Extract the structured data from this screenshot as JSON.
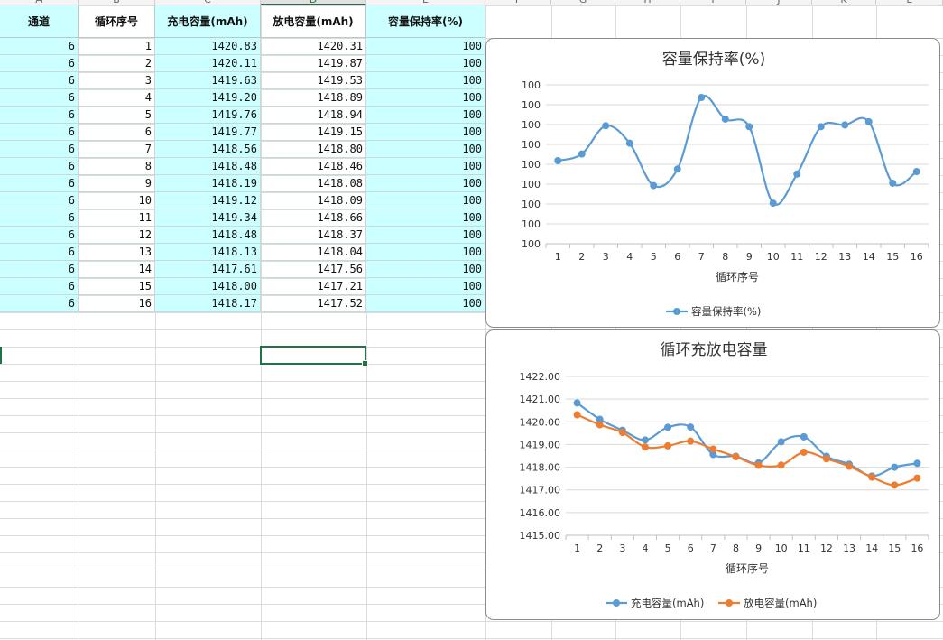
{
  "sheet": {
    "column_letters": [
      "A",
      "B",
      "C",
      "D",
      "E",
      "F",
      "G",
      "H",
      "I",
      "J",
      "K",
      "L"
    ],
    "selected_column": "D",
    "headers": [
      "通道",
      "循环序号",
      "充电容量(mAh)",
      "放电容量(mAh)",
      "容量保持率(%)"
    ],
    "rows": [
      [
        "6",
        "1",
        "1420.83",
        "1420.31",
        "100"
      ],
      [
        "6",
        "2",
        "1420.11",
        "1419.87",
        "100"
      ],
      [
        "6",
        "3",
        "1419.63",
        "1419.53",
        "100"
      ],
      [
        "6",
        "4",
        "1419.20",
        "1418.89",
        "100"
      ],
      [
        "6",
        "5",
        "1419.76",
        "1418.94",
        "100"
      ],
      [
        "6",
        "6",
        "1419.77",
        "1419.15",
        "100"
      ],
      [
        "6",
        "7",
        "1418.56",
        "1418.80",
        "100"
      ],
      [
        "6",
        "8",
        "1418.48",
        "1418.46",
        "100"
      ],
      [
        "6",
        "9",
        "1418.19",
        "1418.08",
        "100"
      ],
      [
        "6",
        "10",
        "1419.12",
        "1418.09",
        "100"
      ],
      [
        "6",
        "11",
        "1419.34",
        "1418.66",
        "100"
      ],
      [
        "6",
        "12",
        "1418.48",
        "1418.37",
        "100"
      ],
      [
        "6",
        "13",
        "1418.13",
        "1418.04",
        "100"
      ],
      [
        "6",
        "14",
        "1417.61",
        "1417.56",
        "100"
      ],
      [
        "6",
        "15",
        "1418.00",
        "1417.21",
        "100"
      ],
      [
        "6",
        "16",
        "1418.17",
        "1417.52",
        "100"
      ]
    ],
    "fill_color": "#ccffff",
    "selection_color": "#217346"
  },
  "chart_data": [
    {
      "type": "line",
      "title": "容量保持率(%)",
      "xlabel": "循环序号",
      "ylabel": "",
      "categories": [
        "1",
        "2",
        "3",
        "4",
        "5",
        "6",
        "7",
        "8",
        "9",
        "10",
        "11",
        "12",
        "13",
        "14",
        "15",
        "16"
      ],
      "y_tick_labels": [
        "100",
        "100",
        "100",
        "100",
        "100",
        "100",
        "100",
        "100",
        "100"
      ],
      "series": [
        {
          "name": "容量保持率(%)",
          "color": "#5b9bd5",
          "values": [
            99.9634,
            99.969,
            99.993,
            99.9782,
            99.9423,
            99.9563,
            100.0169,
            99.9986,
            99.9922,
            99.9274,
            99.9521,
            99.9922,
            99.9937,
            99.9964,
            99.9443,
            99.9542
          ]
        }
      ],
      "legend": "bottom",
      "grid": true
    },
    {
      "type": "line",
      "title": "循环充放电容量",
      "xlabel": "循环序号",
      "ylabel": "",
      "categories": [
        "1",
        "2",
        "3",
        "4",
        "5",
        "6",
        "7",
        "8",
        "9",
        "10",
        "11",
        "12",
        "13",
        "14",
        "15",
        "16"
      ],
      "y_tick_labels": [
        "1422.00",
        "1421.00",
        "1420.00",
        "1419.00",
        "1418.00",
        "1417.00",
        "1416.00",
        "1415.00"
      ],
      "ylim": [
        1415,
        1422
      ],
      "series": [
        {
          "name": "充电容量(mAh)",
          "color": "#5b9bd5",
          "values": [
            1420.83,
            1420.11,
            1419.63,
            1419.2,
            1419.76,
            1419.77,
            1418.56,
            1418.48,
            1418.19,
            1419.12,
            1419.34,
            1418.48,
            1418.13,
            1417.61,
            1418.0,
            1418.17
          ]
        },
        {
          "name": "放电容量(mAh)",
          "color": "#ed7d31",
          "values": [
            1420.31,
            1419.87,
            1419.53,
            1418.89,
            1418.94,
            1419.15,
            1418.8,
            1418.46,
            1418.08,
            1418.09,
            1418.66,
            1418.37,
            1418.04,
            1417.56,
            1417.21,
            1417.52
          ]
        }
      ],
      "legend": "bottom",
      "grid": true
    }
  ]
}
